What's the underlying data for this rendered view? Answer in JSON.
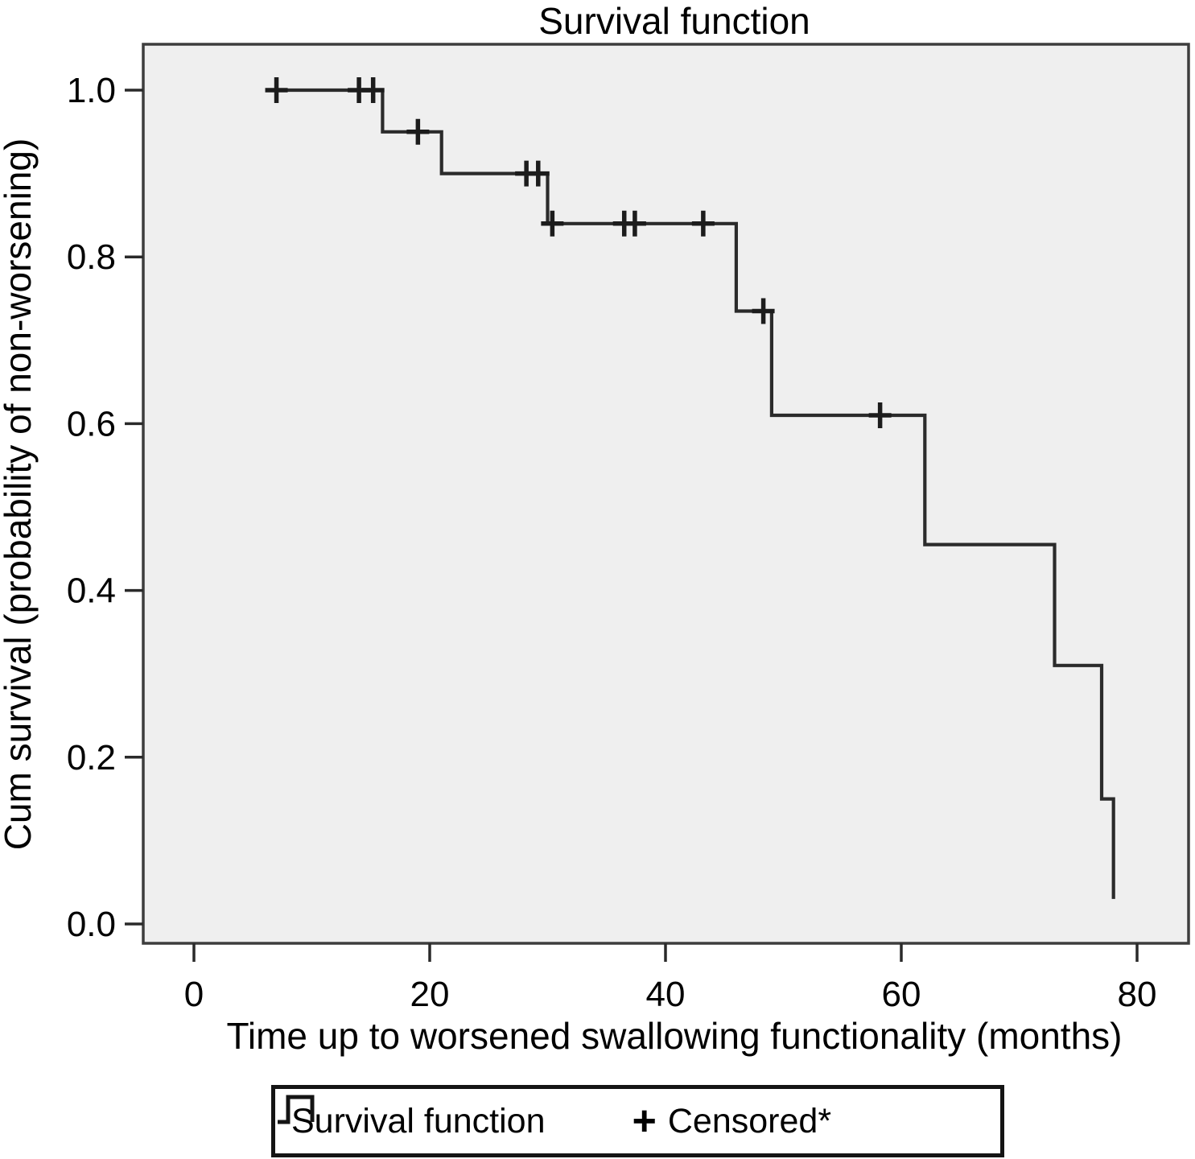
{
  "title": "Survival function",
  "axes": {
    "x_label": "Time up to worsened swallowing functionality (months)",
    "y_label": "Cum survival (probability of non-worsening)"
  },
  "legend": {
    "survival_label": "Survival function",
    "censored_symbol": "+",
    "censored_label": "Censored*"
  },
  "chart_data": {
    "type": "line",
    "subtype": "kaplan-meier-step",
    "title": "Survival function",
    "xlabel": "Time up to worsened swallowing functionality (months)",
    "ylabel": "Cum survival (probability of non-worsening)",
    "xlim": [
      -4.3,
      84.4
    ],
    "ylim": [
      -0.023,
      1.055
    ],
    "x_ticks": [
      0,
      20,
      40,
      60,
      80
    ],
    "x_tick_labels": [
      "0",
      "20",
      "40",
      "60",
      "80"
    ],
    "y_ticks": [
      1.0,
      0.8,
      0.6,
      0.4,
      0.2,
      0.0
    ],
    "y_tick_labels": [
      "1.0",
      "0.8",
      "0.6",
      "0.4",
      "0.2",
      "0.0"
    ],
    "grid": false,
    "plot_background": "#efefef",
    "line_color": "#2b2b2b",
    "curve_start": {
      "t": 7,
      "s": 1.0
    },
    "steps": [
      {
        "t": 16,
        "s_before": 1.0,
        "s_after": 0.95
      },
      {
        "t": 21,
        "s_before": 0.95,
        "s_after": 0.9
      },
      {
        "t": 30,
        "s_before": 0.9,
        "s_after": 0.84
      },
      {
        "t": 46,
        "s_before": 0.84,
        "s_after": 0.735
      },
      {
        "t": 49,
        "s_before": 0.735,
        "s_after": 0.61
      },
      {
        "t": 62,
        "s_before": 0.61,
        "s_after": 0.455
      },
      {
        "t": 73,
        "s_before": 0.455,
        "s_after": 0.31
      },
      {
        "t": 77,
        "s_before": 0.31,
        "s_after": 0.15
      },
      {
        "t": 78,
        "s_before": 0.15,
        "s_after": 0.03
      }
    ],
    "censored": [
      {
        "t": 7,
        "s": 1.0
      },
      {
        "t": 14,
        "s": 1.0
      },
      {
        "t": 15.2,
        "s": 1.0
      },
      {
        "t": 19,
        "s": 0.95
      },
      {
        "t": 28.2,
        "s": 0.9
      },
      {
        "t": 29.2,
        "s": 0.9
      },
      {
        "t": 30.4,
        "s": 0.84
      },
      {
        "t": 36.5,
        "s": 0.84
      },
      {
        "t": 37.4,
        "s": 0.84
      },
      {
        "t": 43.2,
        "s": 0.84
      },
      {
        "t": 48.3,
        "s": 0.735
      },
      {
        "t": 58.2,
        "s": 0.61
      }
    ],
    "legend": [
      "Survival function",
      "Censored*"
    ],
    "legend_position": "bottom"
  }
}
